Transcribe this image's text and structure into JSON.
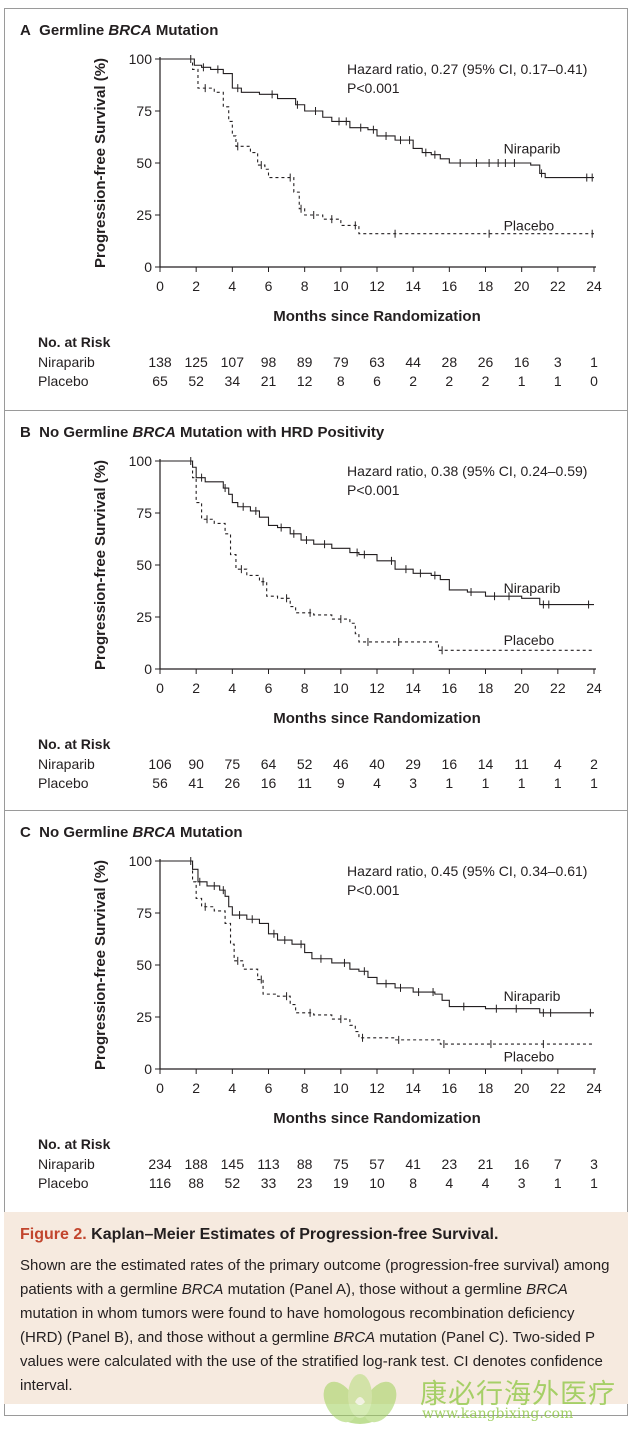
{
  "chart_data": [
    {
      "type": "line",
      "panel_letter": "A",
      "title_pre": "Germline ",
      "title_it": "BRCA",
      "title_post": " Mutation",
      "xlabel": "Months since Randomization",
      "ylabel": "Progression-free Survival (%)",
      "xlim": [
        0,
        24
      ],
      "ylim": [
        0,
        100
      ],
      "xticks": [
        0,
        2,
        4,
        6,
        8,
        10,
        12,
        14,
        16,
        18,
        20,
        22,
        24
      ],
      "yticks": [
        0,
        25,
        50,
        75,
        100
      ],
      "hazard": "Hazard ratio, 0.27 (95% CI, 0.17–0.41)",
      "pvalue": "P<0.001",
      "series": [
        {
          "name": "Niraparib",
          "style": "solid",
          "x": [
            0,
            1.5,
            1.9,
            2.3,
            2.8,
            3.5,
            4,
            4.5,
            5.5,
            6.5,
            7.5,
            8,
            9,
            9.5,
            10.5,
            11.5,
            12,
            13,
            14,
            14.5,
            15,
            15.5,
            16,
            18,
            20,
            20.5,
            21,
            21.3,
            22,
            24
          ],
          "y": [
            100,
            100,
            97,
            96,
            95,
            93,
            86,
            84,
            83,
            81,
            78,
            75,
            72,
            70,
            67,
            66,
            63,
            61,
            57,
            55,
            54,
            52,
            50,
            50,
            50,
            49,
            45,
            43,
            43,
            43
          ]
        },
        {
          "name": "Placebo",
          "style": "dashed",
          "x": [
            0,
            1.5,
            1.8,
            2.1,
            3,
            3.5,
            3.8,
            4,
            4.2,
            5,
            5.4,
            5.8,
            6,
            7,
            7.4,
            7.7,
            8,
            9,
            10,
            11,
            12,
            13,
            14,
            16,
            18,
            20,
            22,
            24
          ],
          "y": [
            100,
            100,
            95,
            86,
            84,
            77,
            70,
            63,
            58,
            55,
            49,
            47,
            43,
            43,
            36,
            28,
            25,
            23,
            20,
            16,
            16,
            16,
            16,
            16,
            16,
            16,
            16,
            16
          ]
        }
      ],
      "censor_n": [
        1.7,
        2.4,
        3.2,
        4.3,
        6.2,
        7.6,
        8.6,
        9.9,
        10.3,
        11.1,
        11.8,
        12.5,
        13.3,
        13.8,
        14.7,
        15.2,
        16.6,
        17.5,
        18.2,
        18.7,
        19.1,
        19.6,
        21.1,
        23.6,
        23.9
      ],
      "censor_p": [
        2.5,
        4.3,
        5.6,
        7.2,
        7.8,
        8.5,
        9.5,
        10.8,
        13,
        18.2,
        23.9
      ],
      "label_positions": {
        "Niraparib": [
          19,
          57
        ],
        "Placebo": [
          19,
          20
        ]
      },
      "risk_title": "No. at Risk",
      "risk": [
        {
          "label": "Niraparib",
          "values": [
            "138",
            "125",
            "107",
            "98",
            "89",
            "79",
            "63",
            "44",
            "28",
            "26",
            "16",
            "3",
            "1"
          ]
        },
        {
          "label": "Placebo",
          "values": [
            "65",
            "52",
            "34",
            "21",
            "12",
            "8",
            "6",
            "2",
            "2",
            "2",
            "1",
            "1",
            "0"
          ]
        }
      ]
    },
    {
      "type": "line",
      "panel_letter": "B",
      "title_pre": "No Germline ",
      "title_it": "BRCA",
      "title_post": " Mutation with HRD Positivity",
      "xlabel": "Months since Randomization",
      "ylabel": "Progression-free Survival (%)",
      "xlim": [
        0,
        24
      ],
      "ylim": [
        0,
        100
      ],
      "xticks": [
        0,
        2,
        4,
        6,
        8,
        10,
        12,
        14,
        16,
        18,
        20,
        22,
        24
      ],
      "yticks": [
        0,
        25,
        50,
        75,
        100
      ],
      "hazard": "Hazard ratio, 0.38 (95% CI, 0.24–0.59)",
      "pvalue": "P<0.001",
      "series": [
        {
          "name": "Niraparib",
          "style": "solid",
          "x": [
            0,
            1.5,
            1.8,
            2,
            2.5,
            3.5,
            3.8,
            4,
            4.3,
            5,
            5.5,
            6,
            6.5,
            7.2,
            7.8,
            8.5,
            9.5,
            10.5,
            11,
            12,
            13,
            14,
            15,
            15.5,
            16,
            17,
            18,
            20,
            21,
            22,
            24
          ],
          "y": [
            100,
            100,
            97,
            92,
            90,
            87,
            84,
            80,
            78,
            76,
            73,
            69,
            68,
            65,
            62,
            60,
            58,
            56,
            55,
            52,
            48,
            46,
            45,
            43,
            38,
            37,
            35,
            34,
            31,
            31,
            31
          ]
        },
        {
          "name": "Placebo",
          "style": "dashed",
          "x": [
            0,
            1.5,
            1.8,
            2,
            2.3,
            3,
            3.6,
            3.9,
            4.2,
            4.8,
            5.5,
            5.9,
            6.5,
            7.2,
            7.5,
            8.5,
            9.5,
            10.5,
            10.8,
            11,
            11.5,
            13,
            15,
            15.4,
            16,
            18,
            20,
            22,
            24
          ],
          "y": [
            100,
            100,
            92,
            80,
            72,
            70,
            65,
            55,
            48,
            45,
            42,
            35,
            34,
            30,
            27,
            26,
            24,
            22,
            17,
            13,
            13,
            13,
            13,
            9,
            9,
            9,
            9,
            9,
            9
          ]
        }
      ],
      "censor_n": [
        1.7,
        2.3,
        3.6,
        4.6,
        5.3,
        6.7,
        7.4,
        8.1,
        9.1,
        10.9,
        11.3,
        12.8,
        13.6,
        14.4,
        15.2,
        17.2,
        18.5,
        19.3,
        21.2,
        21.5,
        23.7
      ],
      "censor_p": [
        2.6,
        4.5,
        5.7,
        7,
        8.3,
        10,
        11.5,
        13.2,
        15.6
      ],
      "label_positions": {
        "Niraparib": [
          19,
          39
        ],
        "Placebo": [
          19,
          14
        ]
      },
      "risk_title": "No. at Risk",
      "risk": [
        {
          "label": "Niraparib",
          "values": [
            "106",
            "90",
            "75",
            "64",
            "52",
            "46",
            "40",
            "29",
            "16",
            "14",
            "11",
            "4",
            "2"
          ]
        },
        {
          "label": "Placebo",
          "values": [
            "56",
            "41",
            "26",
            "16",
            "11",
            "9",
            "4",
            "3",
            "1",
            "1",
            "1",
            "1",
            "1"
          ]
        }
      ]
    },
    {
      "type": "line",
      "panel_letter": "C",
      "title_pre": "No Germline ",
      "title_it": "BRCA",
      "title_post": " Mutation",
      "xlabel": "Months since Randomization",
      "ylabel": "Progression-free Survival (%)",
      "xlim": [
        0,
        24
      ],
      "ylim": [
        0,
        100
      ],
      "xticks": [
        0,
        2,
        4,
        6,
        8,
        10,
        12,
        14,
        16,
        18,
        20,
        22,
        24
      ],
      "yticks": [
        0,
        25,
        50,
        75,
        100
      ],
      "hazard": "Hazard ratio, 0.45 (95% CI, 0.34–0.61)",
      "pvalue": "P<0.001",
      "series": [
        {
          "name": "Niraparib",
          "style": "solid",
          "x": [
            0,
            1.5,
            1.8,
            2.1,
            2.6,
            3.3,
            3.6,
            3.8,
            4,
            4.8,
            5.5,
            6,
            6.5,
            7.3,
            8,
            8.4,
            9.5,
            10.5,
            11,
            11.5,
            12,
            13,
            14,
            15.2,
            15.6,
            16,
            18,
            21,
            22,
            24
          ],
          "y": [
            100,
            100,
            96,
            90,
            88,
            86,
            83,
            78,
            74,
            72,
            70,
            65,
            62,
            60,
            56,
            53,
            51,
            48,
            47,
            44,
            41,
            39,
            37,
            36,
            33,
            30,
            29,
            27,
            27,
            27
          ]
        },
        {
          "name": "Placebo",
          "style": "dashed",
          "x": [
            0,
            1.5,
            1.8,
            2,
            2.3,
            3,
            3.6,
            3.9,
            4.1,
            4.6,
            5.4,
            5.7,
            6.5,
            7.2,
            7.5,
            8.5,
            9.5,
            10.5,
            10.8,
            11,
            11.5,
            13,
            15,
            15.5,
            16,
            18,
            20,
            22,
            24
          ],
          "y": [
            100,
            100,
            90,
            82,
            78,
            76,
            70,
            60,
            52,
            48,
            43,
            36,
            35,
            31,
            27,
            26,
            24,
            21,
            18,
            15,
            15,
            14,
            14,
            12,
            12,
            12,
            12,
            12,
            12
          ]
        }
      ],
      "censor_n": [
        1.7,
        2.2,
        3,
        3.5,
        4.4,
        5.1,
        6.3,
        6.9,
        7.8,
        8.9,
        10.2,
        11.3,
        12.5,
        13.3,
        14.3,
        15.1,
        16.8,
        18.6,
        19.7,
        21.2,
        21.6,
        23.8
      ],
      "censor_p": [
        2.5,
        4.3,
        5.6,
        7,
        8.3,
        10,
        11.2,
        13.2,
        15.7,
        18.3,
        21.2
      ],
      "label_positions": {
        "Niraparib": [
          19,
          35
        ],
        "Placebo": [
          19,
          6
        ]
      },
      "risk_title": "No. at Risk",
      "risk": [
        {
          "label": "Niraparib",
          "values": [
            "234",
            "188",
            "145",
            "113",
            "88",
            "75",
            "57",
            "41",
            "23",
            "21",
            "16",
            "7",
            "3"
          ]
        },
        {
          "label": "Placebo",
          "values": [
            "116",
            "88",
            "52",
            "33",
            "23",
            "19",
            "10",
            "8",
            "4",
            "4",
            "3",
            "1",
            "1"
          ]
        }
      ]
    }
  ],
  "caption": {
    "figure_label": "Figure 2.",
    "figure_title": "Kaplan–Meier Estimates of Progression-free Survival.",
    "body_html": "Shown are the estimated rates of the primary outcome (progression-free survival) among patients with a germline <i>BRCA</i> mutation (Panel A), those without a germline <i>BRCA</i> mutation in whom tumors were found to have homologous recombination deficiency (HRD) (Panel B), and those without a germline <i>BRCA</i> mutation (Panel C). Two-sided P values were calculated with the use of the stratified log-rank test. CI denotes confidence interval."
  },
  "watermark": {
    "text": "康必行海外医疗",
    "url": "www.kangbixing.com"
  },
  "colors": {
    "line": "#231f20",
    "caption_bg": "#f6eadf",
    "accent": "#c2452d",
    "watermark": "#8cc63f"
  }
}
